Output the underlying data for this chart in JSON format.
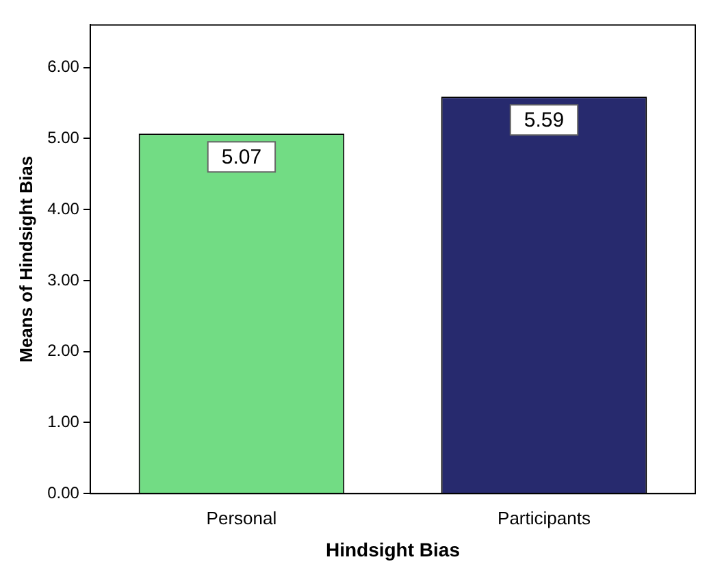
{
  "chart_data": {
    "type": "bar",
    "xlabel": "Hindsight Bias",
    "ylabel": "Means of Hindsight Bias",
    "categories": [
      "Personal",
      "Participants"
    ],
    "values": [
      5.07,
      5.59
    ],
    "colors": [
      "#72dc84",
      "#272a6e"
    ],
    "ylim": [
      0,
      6.6
    ],
    "yticks": [
      {
        "value": 0,
        "label": "0.00"
      },
      {
        "value": 1,
        "label": "1.00"
      },
      {
        "value": 2,
        "label": "2.00"
      },
      {
        "value": 3,
        "label": "3.00"
      },
      {
        "value": 4,
        "label": "4.00"
      },
      {
        "value": 5,
        "label": "5.00"
      },
      {
        "value": 6,
        "label": "6.00"
      }
    ],
    "grid": false,
    "data_labels": true
  }
}
